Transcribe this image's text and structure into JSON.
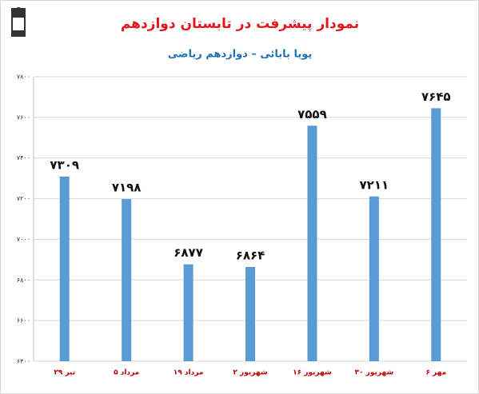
{
  "chart_data": {
    "type": "bar",
    "title": "نمودار پیشرفت در تابستان دوازدهم",
    "subtitle": "پویا بابائی – دوازدهم ریاضی",
    "categories": [
      "۲۹ تیر",
      "۵ مرداد",
      "۱۹ مرداد",
      "۲ شهریور",
      "۱۶ شهریور",
      "۳۰ شهریور",
      "۶ مهر"
    ],
    "values": [
      7309,
      7198,
      6877,
      6864,
      7559,
      7211,
      7645
    ],
    "value_labels": [
      "۷۳۰۹",
      "۷۱۹۸",
      "۶۸۷۷",
      "۶۸۶۴",
      "۷۵۵۹",
      "۷۲۱۱",
      "۷۶۴۵"
    ],
    "color": "#5b9bd5",
    "ylim": [
      6400,
      7800
    ],
    "yticks": [
      {
        "value": 6400,
        "label": "۶۴۰۰"
      },
      {
        "value": 6600,
        "label": "۶۶۰۰"
      },
      {
        "value": 6800,
        "label": "۶۸۰۰"
      },
      {
        "value": 7000,
        "label": "۷۰۰۰"
      },
      {
        "value": 7200,
        "label": "۷۲۰۰"
      },
      {
        "value": 7400,
        "label": "۷۴۰۰"
      },
      {
        "value": 7600,
        "label": "۷۶۰۰"
      },
      {
        "value": 7800,
        "label": "۷۸۰۰"
      }
    ],
    "grid": true
  }
}
